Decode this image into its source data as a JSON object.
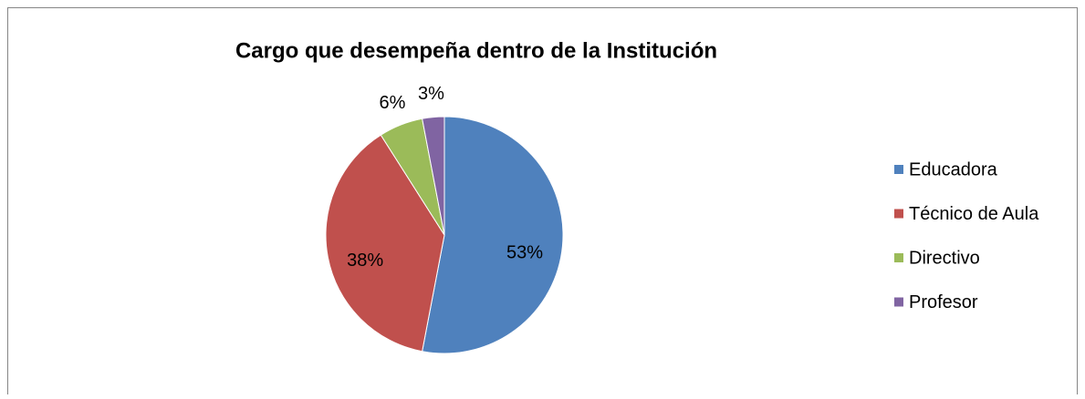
{
  "chart_data": {
    "type": "pie",
    "title": "Cargo que desempeña dentro de la Institución",
    "categories": [
      "Educadora",
      "Técnico de Aula",
      "Directivo",
      "Profesor"
    ],
    "values": [
      53,
      38,
      6,
      3
    ],
    "value_labels": [
      "53%",
      "38%",
      "6%",
      "3%"
    ],
    "colors": [
      "#4f81bd",
      "#c0504d",
      "#9bbb59",
      "#8064a2"
    ],
    "legend": "right"
  }
}
